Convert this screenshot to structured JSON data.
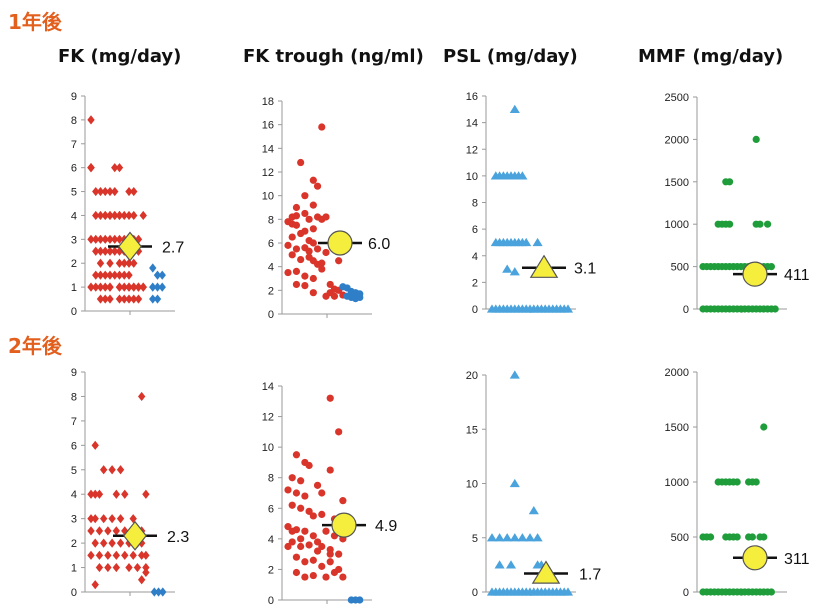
{
  "rows": [
    {
      "label": "1年後"
    },
    {
      "label": "2年後"
    }
  ],
  "titles": [
    "FK (mg/day)",
    "FK trough (ng/ml)",
    "PSL (mg/day)",
    "MMF (mg/day)"
  ],
  "colors": {
    "red": "#d9352a",
    "blue": "#2f7fc8",
    "lightblue": "#4aa3dc",
    "green": "#1f9d3a",
    "mean_fill": "#f6ee3c",
    "header": "#e35f1e"
  },
  "chart_data": [
    {
      "type": "scatter",
      "row": "1年後",
      "title": "FK (mg/day)",
      "ylim": [
        0,
        9
      ],
      "yticks": [
        0,
        1,
        2,
        3,
        4,
        5,
        6,
        7,
        8,
        9
      ],
      "marker": "diamond",
      "mean": {
        "value": 2.7,
        "label": "2.7",
        "marker": "diamond"
      },
      "series": [
        {
          "color": "red",
          "x": [
            0,
            0,
            0,
            0,
            0,
            0.5,
            1,
            1.5,
            2,
            2.5,
            0.5,
            1,
            1.5,
            2,
            2.5,
            3,
            3.5,
            0,
            0.5,
            1,
            1.5,
            2,
            2.5,
            3,
            3.5,
            4,
            4.5,
            5,
            0.5,
            1,
            1.5,
            2,
            2.5,
            3,
            3.5,
            4,
            4.5,
            5,
            1,
            2,
            3,
            3.5,
            4,
            4.5,
            0.5,
            1,
            1.5,
            2,
            2.5,
            3,
            3.5,
            4,
            2,
            3,
            3.5,
            4,
            4.5,
            5,
            5.5,
            0,
            0.5,
            1,
            1.5,
            2,
            3,
            4,
            4.5,
            5,
            5.5,
            1,
            1.5,
            2,
            3,
            3.5,
            4,
            4.5,
            5,
            2.5,
            3,
            4,
            4.5,
            1.5,
            2,
            2.5,
            3,
            4,
            4.5,
            5.5
          ],
          "y": [
            8,
            6,
            6,
            6,
            6,
            5,
            5,
            5,
            5,
            5,
            4,
            4,
            4,
            4,
            4,
            4,
            4,
            3,
            3,
            3,
            3,
            3,
            3,
            3,
            3,
            3,
            3,
            3,
            2.5,
            2.5,
            2.5,
            2.5,
            2.5,
            2.5,
            2.5,
            2.5,
            2.5,
            2.5,
            2,
            2,
            2,
            2,
            2,
            2,
            1.5,
            1.5,
            1.5,
            1.5,
            1.5,
            1.5,
            1.5,
            1.5,
            1,
            1,
            1,
            1,
            1,
            1,
            1,
            1,
            1,
            1,
            1,
            1,
            1,
            1,
            1,
            1,
            1,
            0.5,
            0.5,
            0.5,
            0.5,
            0.5,
            0.5,
            0.5,
            0.5,
            6,
            6,
            5,
            5,
            4,
            4,
            4,
            4,
            4,
            4,
            4
          ]
        },
        {
          "color": "blue",
          "x": [
            6.5,
            7,
            7.5,
            6.5,
            7,
            7.5,
            6.5,
            7
          ],
          "y": [
            1.8,
            1.5,
            1.5,
            1,
            1,
            1,
            0.5,
            0.5
          ]
        }
      ]
    },
    {
      "type": "scatter",
      "row": "1年後",
      "title": "FK trough (ng/ml)",
      "ylim": [
        0,
        18
      ],
      "yticks": [
        0,
        2,
        4,
        6,
        8,
        10,
        12,
        14,
        16,
        18
      ],
      "marker": "circle",
      "mean": {
        "value": 6.0,
        "label": "6.0",
        "marker": "circle"
      },
      "series": [
        {
          "color": "red",
          "x": [
            4,
            1.5,
            3,
            3.5,
            2,
            1,
            3,
            2,
            0.5,
            1,
            2.5,
            0,
            0.5,
            1,
            2,
            3,
            3.5,
            4,
            0.5,
            1.5,
            2.5,
            3,
            0,
            1,
            2,
            2.5,
            3.5,
            4.5,
            0.5,
            1.5,
            2.5,
            3,
            3.5,
            4,
            0,
            1,
            2,
            3,
            4,
            1,
            2,
            3,
            4.5,
            5,
            5.5,
            6,
            4.5,
            5,
            5.5,
            6.5,
            6
          ],
          "y": [
            15.8,
            12.8,
            11.3,
            10.8,
            10,
            9,
            9.2,
            8.5,
            8.2,
            8.3,
            8,
            7.8,
            7.6,
            7.5,
            7,
            7.2,
            8.2,
            8,
            6.5,
            6.8,
            6.2,
            6,
            5.8,
            5.5,
            5.6,
            5.3,
            5.5,
            5.2,
            5,
            4.6,
            4.8,
            4.5,
            4.2,
            4.3,
            3.5,
            3.6,
            3.2,
            3,
            3.8,
            2.5,
            2.4,
            1.8,
            1.5,
            1.8,
            2.1,
            2,
            8.2,
            2.5,
            1.5,
            1.6,
            4.5
          ]
        },
        {
          "color": "blue",
          "x": [
            6.5,
            7,
            7.5,
            8,
            8.5,
            7,
            7.5,
            8,
            8.5
          ],
          "y": [
            2.3,
            2.2,
            1.9,
            1.8,
            1.7,
            1.5,
            1.4,
            1.3,
            1.4
          ]
        }
      ]
    },
    {
      "type": "scatter",
      "row": "1年後",
      "title": "PSL (mg/day)",
      "ylim": [
        0,
        16
      ],
      "yticks": [
        0,
        2,
        4,
        6,
        8,
        10,
        12,
        14,
        16
      ],
      "marker": "triangle",
      "mean": {
        "value": 3.1,
        "label": "3.1",
        "marker": "triangle"
      },
      "series": [
        {
          "color": "lightblue",
          "x": [
            3,
            0.5,
            1,
            1.5,
            2,
            2.5,
            3,
            3.5,
            4,
            0.5,
            1,
            1.5,
            2,
            2.5,
            3,
            3.5,
            4,
            4.5,
            6,
            2,
            3,
            0,
            0.5,
            1,
            1.5,
            2,
            2.5,
            3,
            3.5,
            4,
            4.5,
            5,
            5.5,
            6,
            6.5,
            7,
            7.5,
            8,
            8.5,
            9,
            9.5,
            10
          ],
          "y": [
            15,
            10,
            10,
            10,
            10,
            10,
            10,
            10,
            10,
            5,
            5,
            5,
            5,
            5,
            5,
            5,
            5,
            5,
            5,
            3,
            2.8,
            0,
            0,
            0,
            0,
            0,
            0,
            0,
            0,
            0,
            0,
            0,
            0,
            0,
            0,
            0,
            0,
            0,
            0,
            0,
            0,
            0
          ]
        }
      ]
    },
    {
      "type": "scatter",
      "row": "1年後",
      "title": "MMF (mg/day)",
      "ylim": [
        0,
        2500
      ],
      "yticks": [
        0,
        500,
        1000,
        1500,
        2000,
        2500
      ],
      "marker": "circle",
      "mean": {
        "value": 411,
        "label": "411",
        "marker": "circle"
      },
      "series": [
        {
          "color": "green",
          "x": [
            7,
            3,
            3.5,
            2,
            2.5,
            3,
            3.5,
            7,
            7.5,
            8.5,
            0,
            0.5,
            1,
            1.5,
            2,
            2.5,
            3,
            3.5,
            4,
            4.5,
            5,
            5.5,
            6,
            6.5,
            7,
            7.5,
            8,
            8.5,
            9,
            0,
            0.5,
            1,
            1.5,
            2,
            2.5,
            3,
            3.5,
            4,
            4.5,
            5,
            5.5,
            6,
            6.5,
            7,
            7.5,
            8,
            8.5,
            9,
            9.5
          ],
          "y": [
            2000,
            1500,
            1500,
            1000,
            1000,
            1000,
            1000,
            1000,
            1000,
            1000,
            500,
            500,
            500,
            500,
            500,
            500,
            500,
            500,
            500,
            500,
            500,
            500,
            500,
            500,
            500,
            500,
            500,
            500,
            500,
            0,
            0,
            0,
            0,
            0,
            0,
            0,
            0,
            0,
            0,
            0,
            0,
            0,
            0,
            0,
            0,
            0,
            0,
            0,
            0
          ]
        }
      ]
    },
    {
      "type": "scatter",
      "row": "2年後",
      "title": "FK (mg/day)",
      "ylim": [
        0,
        9
      ],
      "yticks": [
        0,
        1,
        2,
        3,
        4,
        5,
        6,
        7,
        8,
        9
      ],
      "marker": "diamond",
      "mean": {
        "value": 2.3,
        "label": "2.3",
        "marker": "diamond"
      },
      "series": [
        {
          "color": "red",
          "x": [
            6,
            0.5,
            2.5,
            1.5,
            3.5,
            0,
            0.5,
            1,
            3,
            4,
            6.5,
            0,
            0.5,
            1.5,
            2.5,
            3.5,
            5,
            0,
            1,
            2,
            3,
            4,
            5,
            5.5,
            6,
            0.5,
            1.5,
            2.5,
            3.5,
            4.5,
            5.5,
            6,
            0,
            1,
            2,
            3,
            4,
            5,
            6,
            6.5,
            1,
            2,
            3,
            4.5,
            5.5,
            6.5,
            0.5,
            6,
            6.5
          ],
          "y": [
            8,
            6,
            5,
            5,
            5,
            4,
            4,
            4,
            4,
            4,
            4,
            3,
            3,
            3,
            3,
            3,
            3,
            2.5,
            2.5,
            2.5,
            2.5,
            2.5,
            2.5,
            2.5,
            2.5,
            2,
            2,
            2,
            2,
            2,
            2,
            2,
            1.5,
            1.5,
            1.5,
            1.5,
            1.5,
            1.5,
            1.5,
            1.5,
            1,
            1,
            1,
            1,
            1,
            1,
            0.3,
            0.5,
            0.8
          ]
        },
        {
          "color": "blue",
          "x": [
            7.5,
            8,
            8.5
          ],
          "y": [
            0,
            0,
            0
          ]
        }
      ]
    },
    {
      "type": "scatter",
      "row": "2年後",
      "title": "FK trough (ng/ml)",
      "ylim": [
        0,
        14
      ],
      "yticks": [
        0,
        2,
        4,
        6,
        8,
        10,
        12,
        14
      ],
      "marker": "circle",
      "mean": {
        "value": 4.9,
        "label": "4.9",
        "marker": "circle"
      },
      "series": [
        {
          "color": "red",
          "x": [
            5,
            6,
            1,
            2,
            2.5,
            0.5,
            1.5,
            5,
            3.5,
            0,
            1,
            2,
            4,
            6.5,
            0.5,
            1.5,
            2.5,
            3,
            4,
            5.5,
            6,
            0,
            1,
            2,
            3,
            4.5,
            5.5,
            6.5,
            0.5,
            1.5,
            2.5,
            3.5,
            4,
            5,
            6,
            0,
            1,
            2,
            3,
            4,
            5,
            6,
            1,
            2,
            3,
            4.5,
            5.5,
            6.5,
            0.5,
            1.5,
            3.5,
            5
          ],
          "y": [
            13.2,
            11,
            9.5,
            9,
            8.8,
            8,
            7.8,
            8.5,
            7.5,
            7.2,
            7,
            6.8,
            7,
            6.5,
            6.2,
            6,
            5.8,
            5.5,
            5.6,
            5.3,
            5,
            4.8,
            4.6,
            4.5,
            4.2,
            4.5,
            4.2,
            4,
            3.8,
            3.5,
            3.6,
            3.2,
            3.5,
            3.3,
            3,
            3.5,
            2.8,
            2.5,
            2.6,
            2.2,
            2.5,
            2,
            1.8,
            1.5,
            1.6,
            1.5,
            1.8,
            1.5,
            4.5,
            4,
            3.8,
            3
          ]
        },
        {
          "color": "blue",
          "x": [
            7.5,
            8,
            8.5
          ],
          "y": [
            0,
            0,
            0
          ]
        }
      ]
    },
    {
      "type": "scatter",
      "row": "2年後",
      "title": "PSL (mg/day)",
      "ylim": [
        0,
        20
      ],
      "yticks": [
        0,
        5,
        10,
        15,
        20
      ],
      "marker": "triangle",
      "mean": {
        "value": 1.7,
        "label": "1.7",
        "marker": "triangle"
      },
      "series": [
        {
          "color": "lightblue",
          "x": [
            3,
            3,
            0,
            1,
            2,
            3,
            4,
            5,
            6,
            5.5,
            6.5,
            1,
            2.5,
            6,
            0,
            0.5,
            1,
            1.5,
            2,
            2.5,
            3,
            3.5,
            4,
            4.5,
            5,
            5.5,
            6,
            6.5,
            7,
            7.5,
            8,
            8.5,
            9,
            9.5,
            10
          ],
          "y": [
            20,
            10,
            5,
            5,
            5,
            5,
            5,
            5,
            5,
            7.5,
            2.5,
            2.5,
            2.5,
            2.5,
            0,
            0,
            0,
            0,
            0,
            0,
            0,
            0,
            0,
            0,
            0,
            0,
            0,
            0,
            0,
            0,
            0,
            0,
            0,
            0,
            0
          ]
        }
      ]
    },
    {
      "type": "scatter",
      "row": "2年後",
      "title": "MMF (mg/day)",
      "ylim": [
        0,
        2000
      ],
      "yticks": [
        0,
        500,
        1000,
        1500,
        2000
      ],
      "marker": "circle",
      "mean": {
        "value": 311,
        "label": "311",
        "marker": "circle"
      },
      "series": [
        {
          "color": "green",
          "x": [
            8,
            2,
            2.5,
            3,
            3.5,
            4,
            4.5,
            6,
            6.5,
            7,
            0,
            0.5,
            1,
            3,
            3.5,
            4,
            4.5,
            6,
            6.5,
            7.5,
            8,
            0,
            0.5,
            1,
            1.5,
            2,
            2.5,
            3,
            3.5,
            4,
            4.5,
            5,
            5.5,
            6,
            6.5,
            7,
            7.5,
            8,
            8.5,
            9
          ],
          "y": [
            1500,
            1000,
            1000,
            1000,
            1000,
            1000,
            1000,
            1000,
            1000,
            1000,
            500,
            500,
            500,
            500,
            500,
            500,
            500,
            500,
            500,
            500,
            500,
            0,
            0,
            0,
            0,
            0,
            0,
            0,
            0,
            0,
            0,
            0,
            0,
            0,
            0,
            0,
            0,
            0,
            0,
            0
          ]
        }
      ]
    }
  ]
}
